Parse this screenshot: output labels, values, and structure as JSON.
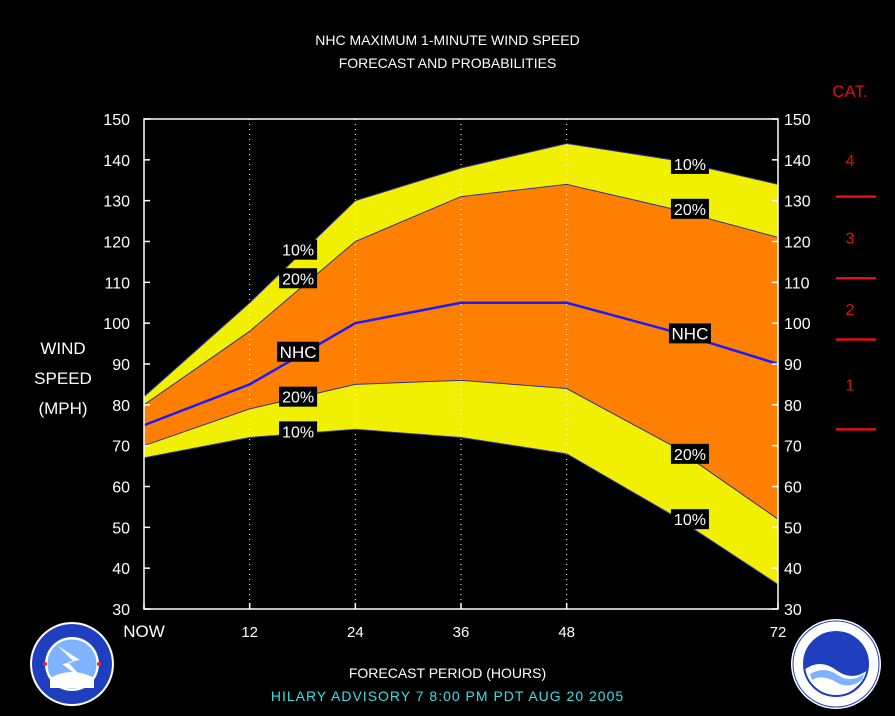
{
  "title_line1": "NHC MAXIMUM 1-MINUTE WIND SPEED",
  "title_line2": "FORECAST AND PROBABILITIES",
  "ylabel_lines": [
    "WIND",
    "SPEED",
    "(MPH)"
  ],
  "xlabel": "FORECAST PERIOD (HOURS)",
  "advisory": "HILARY   ADVISORY  7  8:00  PM  PDT  AUG 20  2005",
  "category_title": "CAT.",
  "colors": {
    "band_10": "#f0f000",
    "band_20": "#ff8000",
    "nhc_line": "#1a1aff",
    "edge_line": "#3030a0",
    "category": "#e01010",
    "advisory": "#33e0e6",
    "grid": "#ffffff",
    "background": "#000000"
  },
  "chart_data": {
    "type": "area",
    "x_ticks": [
      0,
      12,
      24,
      36,
      48,
      72
    ],
    "x_tick_labels": [
      "NOW",
      "12",
      "24",
      "36",
      "48",
      "72"
    ],
    "xlim": [
      0,
      72
    ],
    "ylim": [
      30,
      150
    ],
    "y_ticks": [
      30,
      40,
      50,
      60,
      70,
      80,
      90,
      100,
      110,
      120,
      130,
      140,
      150
    ],
    "y_tick_labels": [
      "30",
      "40",
      "50",
      "60",
      "70",
      "80",
      "90",
      "100",
      "110",
      "120",
      "130",
      "140",
      "150"
    ],
    "grid": "vertical dotted at 12, 24, 36, 48",
    "x": [
      0,
      12,
      24,
      36,
      48,
      60,
      72
    ],
    "series": [
      {
        "name": "10%",
        "role": "upper_10",
        "values": [
          82,
          105,
          130,
          138,
          144,
          140,
          134
        ]
      },
      {
        "name": "20%",
        "role": "upper_20",
        "values": [
          80,
          98,
          120,
          131,
          134,
          128,
          121
        ]
      },
      {
        "name": "NHC",
        "role": "forecast",
        "values": [
          75,
          85,
          100,
          105,
          105,
          98,
          90
        ]
      },
      {
        "name": "20%",
        "role": "lower_20",
        "values": [
          70,
          79,
          85,
          86,
          84,
          70,
          52
        ]
      },
      {
        "name": "10%",
        "role": "lower_10",
        "values": [
          67,
          72,
          74,
          72,
          68,
          53,
          36
        ]
      }
    ],
    "labels": [
      {
        "text": "10%",
        "x": 17.5,
        "y": 118
      },
      {
        "text": "20%",
        "x": 17.5,
        "y": 111
      },
      {
        "text": "NHC",
        "x": 17.5,
        "y": 93
      },
      {
        "text": "20%",
        "x": 17.5,
        "y": 82
      },
      {
        "text": "10%",
        "x": 17.5,
        "y": 73.5
      },
      {
        "text": "10%",
        "x": 62,
        "y": 139
      },
      {
        "text": "20%",
        "x": 62,
        "y": 128
      },
      {
        "text": "NHC",
        "x": 62,
        "y": 97.5
      },
      {
        "text": "20%",
        "x": 62,
        "y": 68
      },
      {
        "text": "10%",
        "x": 62,
        "y": 52
      }
    ],
    "categories_scale": [
      {
        "label": "4",
        "boundary_low": 131
      },
      {
        "label": "3",
        "boundary_low": 111
      },
      {
        "label": "2",
        "boundary_low": 96
      },
      {
        "label": "1",
        "boundary_low": 74
      }
    ]
  }
}
